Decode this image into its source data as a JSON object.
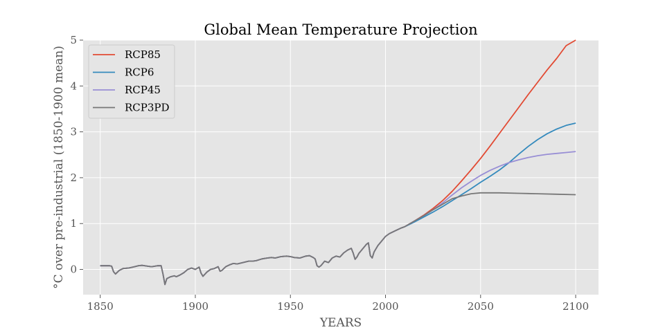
{
  "chart_data": {
    "type": "line",
    "title": "Global Mean Temperature Projection",
    "xlabel": "YEARS",
    "ylabel": "°C over pre-industrial (1850-1900 mean)",
    "xlim": [
      1841,
      2112
    ],
    "ylim": [
      -0.55,
      5
    ],
    "xticks": [
      1850,
      1900,
      1950,
      2000,
      2050,
      2100
    ],
    "yticks": [
      0,
      1,
      2,
      3,
      4,
      5
    ],
    "grid": true,
    "legend_position": "top-left",
    "historical": {
      "x": [
        1850,
        1855,
        1856,
        1857,
        1858,
        1860,
        1862,
        1865,
        1868,
        1870,
        1872,
        1875,
        1877,
        1880,
        1882,
        1883,
        1884,
        1885,
        1887,
        1889,
        1890,
        1892,
        1894,
        1896,
        1898,
        1900,
        1902,
        1903,
        1904,
        1906,
        1908,
        1910,
        1912,
        1913,
        1914,
        1916,
        1918,
        1920,
        1922,
        1925,
        1928,
        1930,
        1932,
        1935,
        1938,
        1940,
        1942,
        1945,
        1948,
        1950,
        1952,
        1955,
        1958,
        1960,
        1962,
        1963,
        1964,
        1965,
        1966,
        1968,
        1970,
        1972,
        1974,
        1976,
        1978,
        1980,
        1982,
        1983,
        1984,
        1985,
        1986,
        1988,
        1990,
        1991,
        1992,
        1993,
        1994,
        1996,
        1998,
        2000,
        2002,
        2005,
        2008
      ],
      "y": [
        0.08,
        0.08,
        0.07,
        -0.05,
        -0.1,
        -0.02,
        0.02,
        0.03,
        0.06,
        0.08,
        0.09,
        0.07,
        0.06,
        0.08,
        0.08,
        -0.1,
        -0.33,
        -0.2,
        -0.16,
        -0.14,
        -0.16,
        -0.12,
        -0.07,
        0.0,
        0.03,
        0.0,
        0.05,
        -0.08,
        -0.15,
        -0.06,
        0.0,
        0.02,
        0.06,
        -0.04,
        -0.02,
        0.06,
        0.1,
        0.13,
        0.12,
        0.15,
        0.18,
        0.18,
        0.19,
        0.23,
        0.25,
        0.26,
        0.25,
        0.28,
        0.29,
        0.28,
        0.26,
        0.25,
        0.29,
        0.3,
        0.26,
        0.23,
        0.08,
        0.05,
        0.08,
        0.18,
        0.15,
        0.25,
        0.29,
        0.27,
        0.36,
        0.42,
        0.46,
        0.36,
        0.22,
        0.27,
        0.35,
        0.45,
        0.55,
        0.58,
        0.3,
        0.25,
        0.38,
        0.52,
        0.62,
        0.72,
        0.78,
        0.84,
        0.9
      ]
    },
    "series": [
      {
        "name": "RCP85",
        "color": "#E24A33",
        "x": [
          2010,
          2015,
          2020,
          2025,
          2030,
          2035,
          2040,
          2045,
          2050,
          2055,
          2060,
          2065,
          2070,
          2075,
          2080,
          2085,
          2090,
          2095,
          2100
        ],
        "y": [
          0.93,
          1.05,
          1.18,
          1.33,
          1.5,
          1.7,
          1.93,
          2.17,
          2.42,
          2.69,
          2.97,
          3.25,
          3.53,
          3.81,
          4.08,
          4.35,
          4.6,
          4.88,
          5.15
        ]
      },
      {
        "name": "RCP6",
        "color": "#348ABD",
        "x": [
          2010,
          2015,
          2020,
          2025,
          2030,
          2035,
          2040,
          2045,
          2050,
          2055,
          2060,
          2065,
          2070,
          2075,
          2080,
          2085,
          2090,
          2095,
          2100
        ],
        "y": [
          0.93,
          1.03,
          1.14,
          1.25,
          1.37,
          1.5,
          1.63,
          1.76,
          1.9,
          2.03,
          2.17,
          2.33,
          2.51,
          2.68,
          2.83,
          2.96,
          3.06,
          3.14,
          3.19
        ]
      },
      {
        "name": "RCP45",
        "color": "#988ED5",
        "x": [
          2010,
          2015,
          2020,
          2025,
          2030,
          2035,
          2040,
          2045,
          2050,
          2055,
          2060,
          2065,
          2070,
          2075,
          2080,
          2085,
          2090,
          2095,
          2100
        ],
        "y": [
          0.93,
          1.05,
          1.17,
          1.3,
          1.45,
          1.62,
          1.78,
          1.92,
          2.05,
          2.16,
          2.25,
          2.33,
          2.39,
          2.44,
          2.48,
          2.51,
          2.53,
          2.55,
          2.57
        ]
      },
      {
        "name": "RCP3PD",
        "color": "#777777",
        "x": [
          2010,
          2015,
          2020,
          2025,
          2030,
          2035,
          2040,
          2045,
          2050,
          2055,
          2060,
          2070,
          2080,
          2090,
          2100
        ],
        "y": [
          0.93,
          1.05,
          1.17,
          1.3,
          1.42,
          1.54,
          1.6,
          1.65,
          1.67,
          1.67,
          1.67,
          1.66,
          1.65,
          1.64,
          1.63
        ]
      }
    ]
  }
}
